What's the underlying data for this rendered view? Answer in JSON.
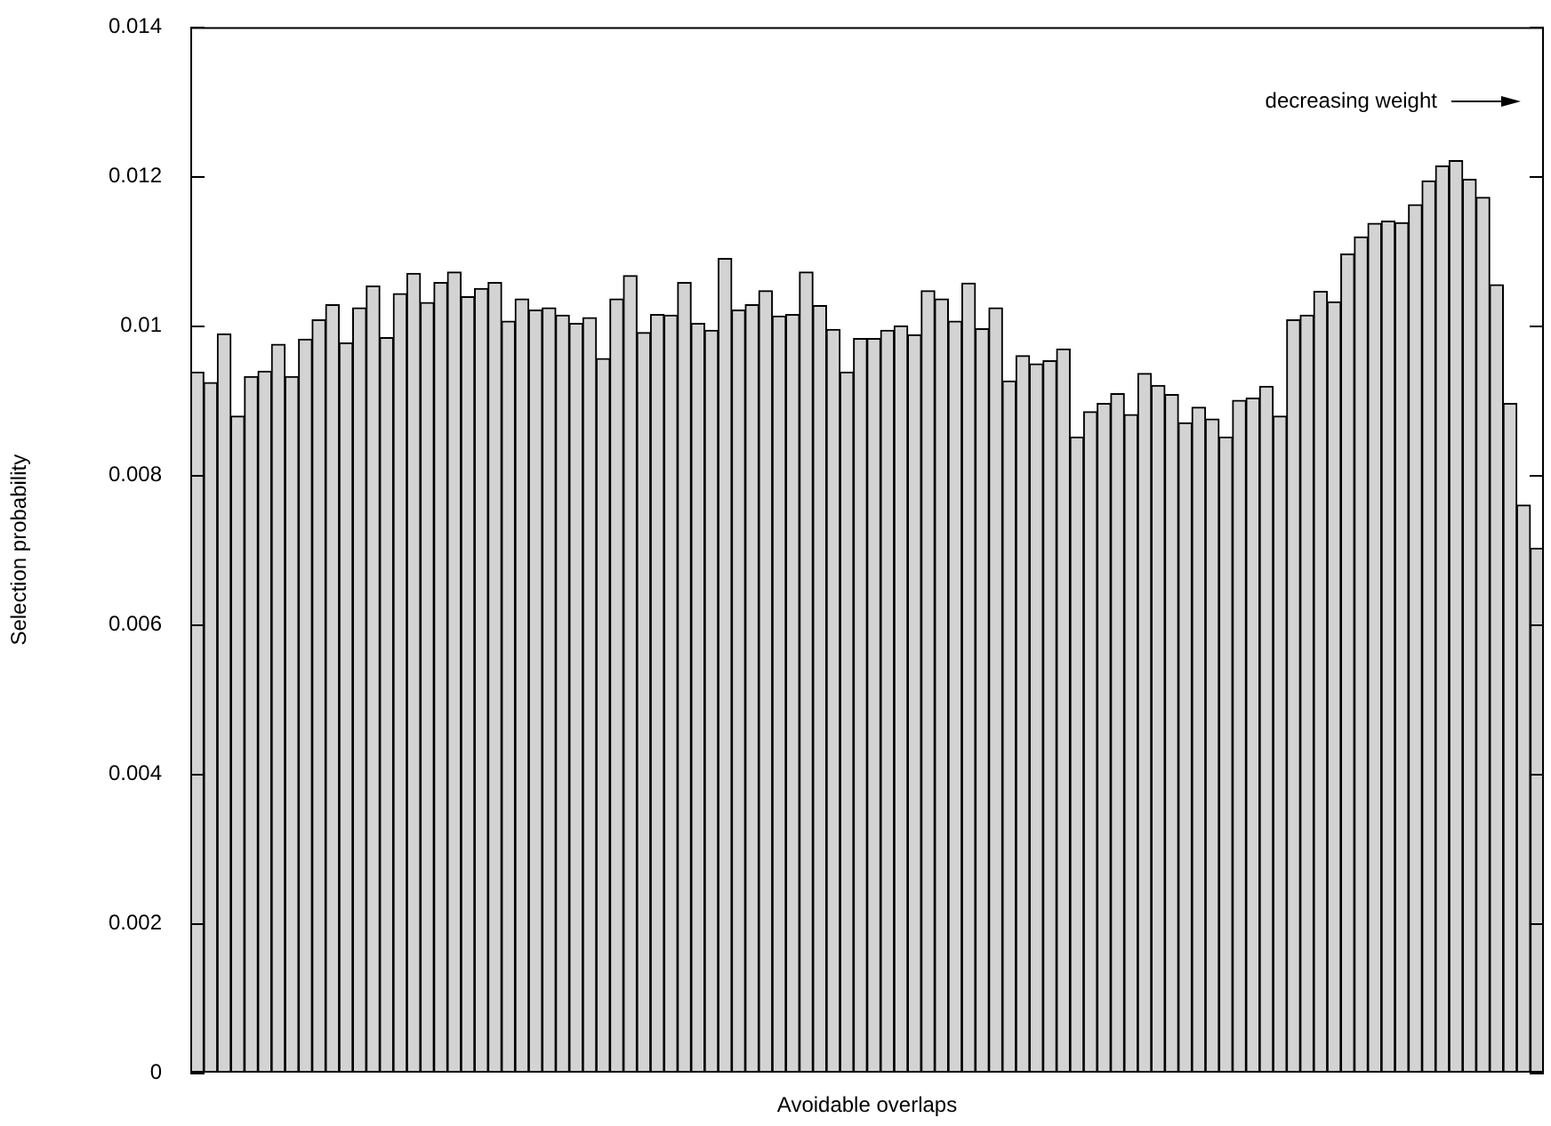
{
  "chart_data": {
    "type": "bar",
    "xlabel": "Avoidable overlaps",
    "ylabel": "Selection probability",
    "color": "#d3d3d3",
    "annotations": [
      "decreasing weight"
    ],
    "categories": [
      null,
      null,
      null,
      null,
      null,
      null,
      null,
      null,
      null,
      null,
      null,
      null,
      null,
      null,
      null,
      null,
      null,
      null,
      null,
      null,
      null,
      null,
      null,
      null,
      null,
      null,
      null,
      null,
      null,
      null,
      null,
      null,
      null,
      null,
      null,
      null,
      null,
      null,
      null,
      null,
      null,
      null,
      null,
      null,
      null,
      null,
      null,
      null,
      null,
      null,
      null,
      null,
      null,
      null,
      null,
      null,
      null,
      null,
      null,
      null,
      null,
      null,
      null,
      null,
      null,
      null,
      null,
      null,
      null,
      null,
      null,
      null,
      null,
      null,
      null,
      null,
      null,
      null,
      null,
      null,
      null,
      null,
      null,
      null,
      null,
      null,
      null,
      null,
      null,
      null,
      null,
      null,
      null,
      null,
      null,
      null,
      null,
      null,
      null,
      null
    ],
    "values": [
      0.00938,
      0.00924,
      0.00989,
      0.00879,
      0.00932,
      0.00939,
      0.00975,
      0.00932,
      0.00982,
      0.01008,
      0.01028,
      0.00977,
      0.01024,
      0.01053,
      0.00984,
      0.01043,
      0.0107,
      0.01031,
      0.01058,
      0.01072,
      0.01039,
      0.0105,
      0.01058,
      0.01006,
      0.01036,
      0.01021,
      0.01024,
      0.01014,
      0.01003,
      0.01011,
      0.00956,
      0.01036,
      0.01067,
      0.00991,
      0.01015,
      0.01014,
      0.01058,
      0.01003,
      0.00994,
      0.0109,
      0.01021,
      0.01028,
      0.01047,
      0.01013,
      0.01015,
      0.01072,
      0.01027,
      0.00995,
      0.00938,
      0.00983,
      0.00983,
      0.00994,
      0.01,
      0.00988,
      0.01047,
      0.01036,
      0.01006,
      0.01057,
      0.00996,
      0.01024,
      0.00926,
      0.0096,
      0.00949,
      0.00953,
      0.00969,
      0.00851,
      0.00885,
      0.00896,
      0.00909,
      0.00881,
      0.00936,
      0.0092,
      0.00908,
      0.0087,
      0.00891,
      0.00875,
      0.00851,
      0.009,
      0.00903,
      0.00919,
      0.00879,
      0.01008,
      0.01014,
      0.01046,
      0.01032,
      0.01096,
      0.01119,
      0.01137,
      0.0114,
      0.01138,
      0.01162,
      0.01194,
      0.01214,
      0.01221,
      0.01196,
      0.01172,
      0.01055,
      0.00896,
      0.0076,
      0.00702
    ],
    "ylim": [
      0,
      0.014
    ],
    "yticks": [
      0,
      0.002,
      0.004,
      0.006,
      0.008,
      0.01,
      0.012,
      0.014
    ]
  }
}
